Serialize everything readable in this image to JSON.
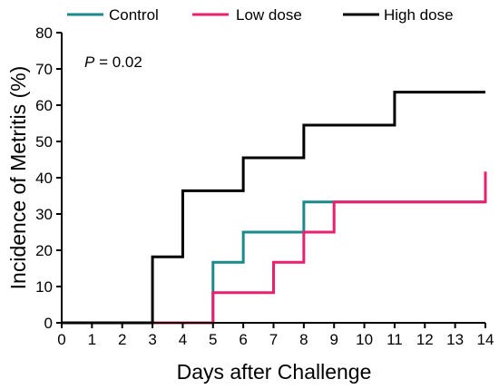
{
  "chart_data": {
    "type": "line",
    "step": true,
    "xlabel": "Days after Challenge",
    "ylabel": "Incidence of Metritis (%)",
    "xlim": [
      0,
      14
    ],
    "ylim": [
      0,
      80
    ],
    "xticks": [
      0,
      1,
      2,
      3,
      4,
      5,
      6,
      7,
      8,
      9,
      10,
      11,
      12,
      13,
      14
    ],
    "yticks": [
      0,
      10,
      20,
      30,
      40,
      50,
      60,
      70,
      80
    ],
    "grid": false,
    "legend_position": "top",
    "annotation": {
      "italic": "P",
      "rest": " = 0.02"
    },
    "series": [
      {
        "name": "Control",
        "color": "#1a8a8a",
        "x": [
          0,
          5,
          6,
          8,
          14
        ],
        "y": [
          0,
          16.7,
          25,
          33.3,
          33.3
        ]
      },
      {
        "name": "Low dose",
        "color": "#e8206e",
        "x": [
          0,
          5,
          7,
          8,
          9,
          14
        ],
        "y": [
          0,
          8.3,
          16.7,
          25,
          33.3,
          41.7
        ]
      },
      {
        "name": "High dose",
        "color": "#000000",
        "x": [
          0,
          3,
          4,
          6,
          8,
          11,
          14
        ],
        "y": [
          0,
          18.2,
          36.4,
          45.5,
          54.5,
          63.6,
          63.6
        ]
      }
    ]
  }
}
